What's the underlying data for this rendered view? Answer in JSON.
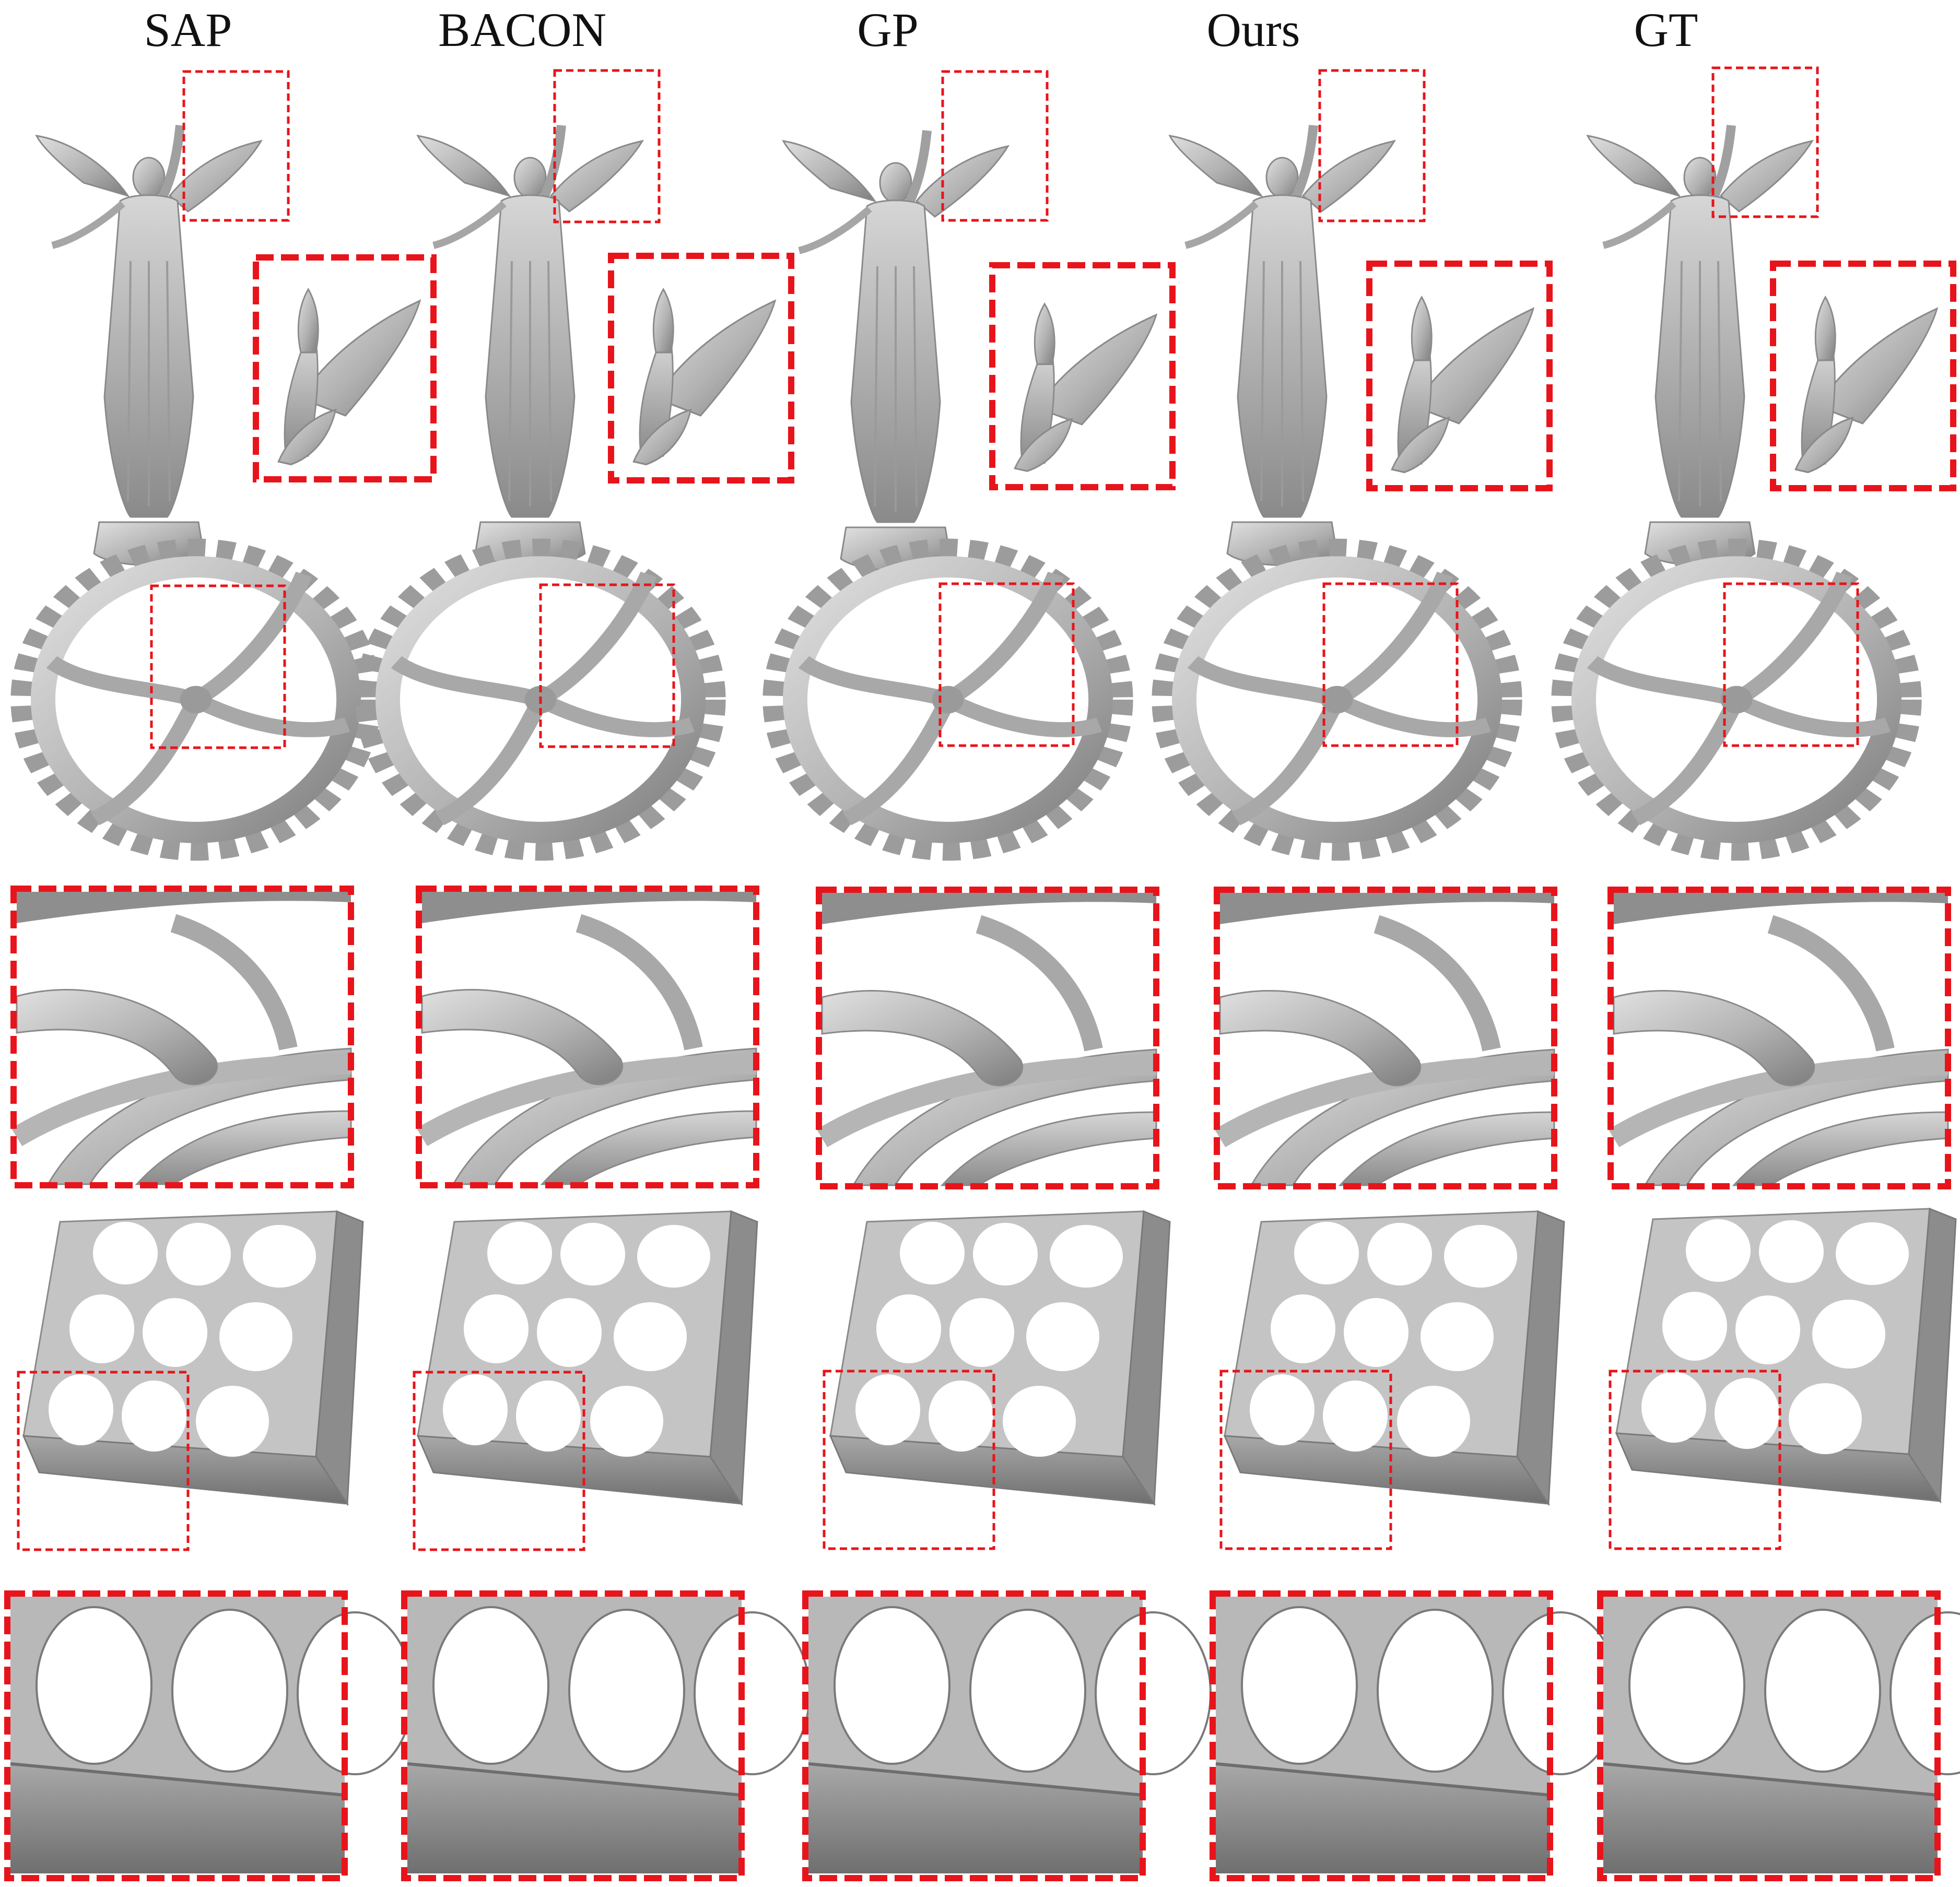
{
  "columns": [
    {
      "id": "sap",
      "label": "SAP"
    },
    {
      "id": "bacon",
      "label": "BACON"
    },
    {
      "id": "gp",
      "label": "GP"
    },
    {
      "id": "ours",
      "label": "Ours"
    },
    {
      "id": "gt",
      "label": "GT"
    }
  ],
  "rows": [
    {
      "id": "statue",
      "kind": "mesh-with-inset"
    },
    {
      "id": "gear",
      "kind": "mesh"
    },
    {
      "id": "gear-zoom",
      "kind": "zoom"
    },
    {
      "id": "plate",
      "kind": "mesh"
    },
    {
      "id": "plate-zoom",
      "kind": "zoom"
    }
  ],
  "colors": {
    "highlight": "#e8141b",
    "mesh_light": "#d4d4d4",
    "mesh_mid": "#ababab",
    "mesh_dark": "#7c7c7c",
    "background": "#ffffff"
  }
}
